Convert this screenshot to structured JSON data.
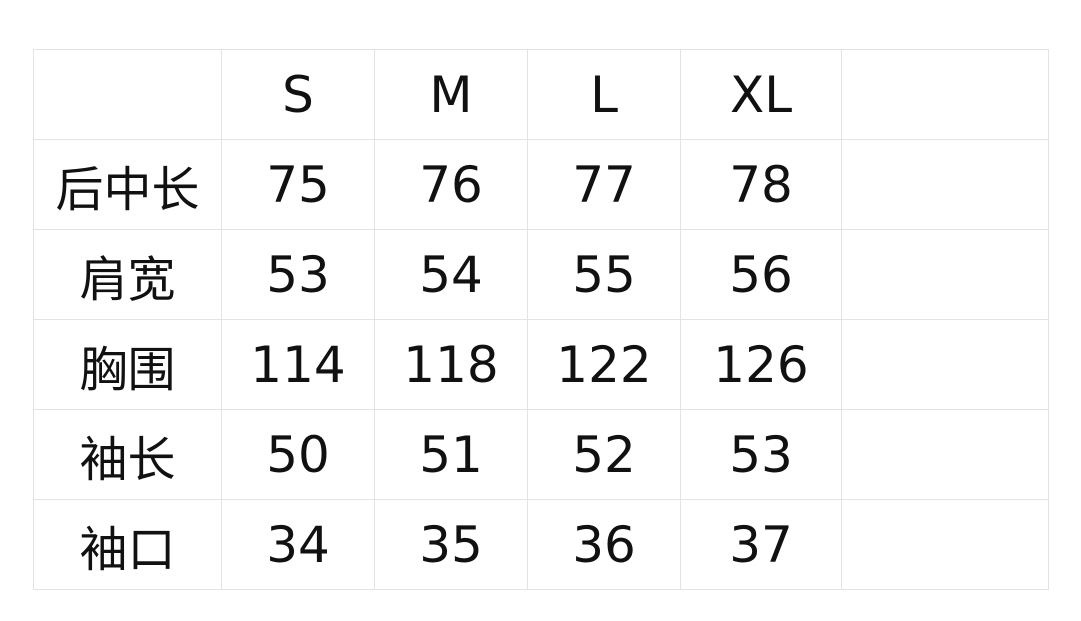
{
  "size_chart": {
    "headers": [
      "",
      "S",
      "M",
      "L",
      "XL",
      ""
    ],
    "rows": [
      {
        "label": "后中长",
        "values": [
          "75",
          "76",
          "77",
          "78",
          ""
        ]
      },
      {
        "label": "肩宽",
        "values": [
          "53",
          "54",
          "55",
          "56",
          ""
        ]
      },
      {
        "label": "胸围",
        "values": [
          "114",
          "118",
          "122",
          "126",
          ""
        ]
      },
      {
        "label": "袖长",
        "values": [
          "50",
          "51",
          "52",
          "53",
          ""
        ]
      },
      {
        "label": "袖口",
        "values": [
          "34",
          "35",
          "36",
          "37",
          ""
        ]
      }
    ]
  }
}
